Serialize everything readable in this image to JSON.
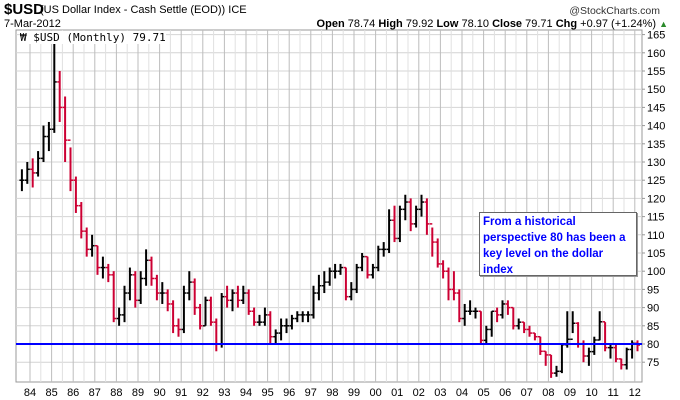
{
  "header": {
    "symbol": "$USD",
    "description": "(US Dollar Index - Cash Settle (EOD)) ICE",
    "copyright": "@StockCharts.com",
    "date": "7-Mar-2012",
    "open_label": "Open",
    "open": "78.74",
    "high_label": "High",
    "high": "79.92",
    "low_label": "Low",
    "low": "78.10",
    "close_label": "Close",
    "close": "79.71",
    "chg_label": "Chg",
    "chg": "+0.97 (+1.24%)",
    "chg_direction": "up"
  },
  "legend": {
    "text": "$USD (Monthly) 79.71",
    "icon": "ohlc-bar-icon"
  },
  "annotation": {
    "text": "From a historical perspective 80 has been a key level on the dollar index"
  },
  "colors": {
    "up": "#000000",
    "down": "#cc0033",
    "reference_line": "#0000ff",
    "grid": "#cccccc"
  },
  "chart_data": {
    "type": "ohlc-bar",
    "title": "$USD (US Dollar Index - Cash Settle (EOD)) ICE",
    "period": "Monthly",
    "ylim": [
      70,
      167
    ],
    "y_ticks": [
      75,
      80,
      85,
      90,
      95,
      100,
      105,
      110,
      115,
      120,
      125,
      130,
      135,
      140,
      145,
      150,
      155,
      160,
      165
    ],
    "x_ticks": [
      "84",
      "85",
      "86",
      "87",
      "88",
      "89",
      "90",
      "91",
      "92",
      "93",
      "94",
      "95",
      "96",
      "97",
      "98",
      "99",
      "00",
      "01",
      "02",
      "03",
      "04",
      "05",
      "06",
      "07",
      "08",
      "09",
      "10",
      "11",
      "12"
    ],
    "x_tick_years": [
      1984,
      1985,
      1986,
      1987,
      1988,
      1989,
      1990,
      1991,
      1992,
      1993,
      1994,
      1995,
      1996,
      1997,
      1998,
      1999,
      2000,
      2001,
      2002,
      2003,
      2004,
      2005,
      2006,
      2007,
      2008,
      2009,
      2010,
      2011,
      2012
    ],
    "grid": true,
    "reference_line": 80,
    "start": "1983-Q3",
    "bar_interval": "quarter (approximated)",
    "bars_close_high_low": [
      [
        125,
        128,
        122
      ],
      [
        128,
        130,
        124
      ],
      [
        127,
        131,
        123
      ],
      [
        131,
        133,
        126
      ],
      [
        137,
        140,
        130
      ],
      [
        139,
        141,
        133
      ],
      [
        152,
        164,
        138
      ],
      [
        145,
        155,
        141
      ],
      [
        136,
        148,
        130
      ],
      [
        125,
        134,
        122
      ],
      [
        118,
        126,
        116
      ],
      [
        111,
        119,
        109
      ],
      [
        106,
        112,
        104
      ],
      [
        107,
        110,
        104
      ],
      [
        101,
        107,
        99
      ],
      [
        101,
        104,
        98
      ],
      [
        99,
        102,
        97
      ],
      [
        87,
        100,
        86
      ],
      [
        88,
        90,
        85
      ],
      [
        94,
        96,
        86
      ],
      [
        99,
        101,
        92
      ],
      [
        92,
        100,
        90
      ],
      [
        98,
        100,
        91
      ],
      [
        103,
        106,
        96
      ],
      [
        98,
        104,
        96
      ],
      [
        94,
        99,
        92
      ],
      [
        94,
        97,
        91
      ],
      [
        91,
        95,
        89
      ],
      [
        85,
        92,
        83
      ],
      [
        84,
        87,
        82
      ],
      [
        94,
        96,
        83
      ],
      [
        97,
        100,
        92
      ],
      [
        90,
        98,
        88
      ],
      [
        85,
        91,
        84
      ],
      [
        92,
        93,
        85
      ],
      [
        86,
        93,
        85
      ],
      [
        80,
        87,
        78
      ],
      [
        93,
        94,
        79
      ],
      [
        92,
        96,
        90
      ],
      [
        94,
        95,
        89
      ],
      [
        92,
        96,
        90
      ],
      [
        94,
        96,
        91
      ],
      [
        89,
        95,
        88
      ],
      [
        86,
        90,
        85
      ],
      [
        86,
        88,
        85
      ],
      [
        88,
        90,
        85
      ],
      [
        82,
        89,
        80
      ],
      [
        83,
        84,
        80
      ],
      [
        85,
        87,
        81
      ],
      [
        85,
        87,
        83
      ],
      [
        87,
        88,
        84
      ],
      [
        88,
        89,
        86
      ],
      [
        88,
        89,
        86
      ],
      [
        88,
        89,
        86
      ],
      [
        94,
        96,
        87
      ],
      [
        96,
        99,
        92
      ],
      [
        97,
        100,
        94
      ],
      [
        100,
        101,
        96
      ],
      [
        100,
        102,
        98
      ],
      [
        101,
        102,
        99
      ],
      [
        93,
        101,
        92
      ],
      [
        95,
        97,
        92
      ],
      [
        101,
        102,
        94
      ],
      [
        104,
        105,
        100
      ],
      [
        99,
        104,
        98
      ],
      [
        101,
        102,
        98
      ],
      [
        106,
        107,
        100
      ],
      [
        106,
        108,
        104
      ],
      [
        114,
        117,
        105
      ],
      [
        109,
        118,
        108
      ],
      [
        117,
        118,
        108
      ],
      [
        119,
        121,
        114
      ],
      [
        113,
        120,
        111
      ],
      [
        117,
        118,
        112
      ],
      [
        119,
        121,
        115
      ],
      [
        113,
        120,
        110
      ],
      [
        108,
        112,
        104
      ],
      [
        102,
        109,
        101
      ],
      [
        100,
        103,
        98
      ],
      [
        95,
        101,
        92
      ],
      [
        94,
        100,
        92
      ],
      [
        87,
        95,
        86
      ],
      [
        89,
        91,
        85
      ],
      [
        89,
        92,
        88
      ],
      [
        89,
        90,
        87
      ],
      [
        81,
        89,
        80
      ],
      [
        84,
        85,
        80
      ],
      [
        89,
        89,
        82
      ],
      [
        88,
        90,
        86
      ],
      [
        91,
        92,
        87
      ],
      [
        90,
        92,
        88
      ],
      [
        85,
        90,
        84
      ],
      [
        86,
        87,
        84
      ],
      [
        84,
        86,
        83
      ],
      [
        83,
        85,
        82
      ],
      [
        82,
        83,
        81
      ],
      [
        78,
        82,
        77
      ],
      [
        77,
        78,
        74
      ],
      [
        72,
        77,
        70.7
      ],
      [
        72.5,
        74,
        71
      ],
      [
        79.8,
        80,
        72
      ],
      [
        81.3,
        89,
        79
      ],
      [
        85.7,
        89,
        83
      ],
      [
        80.1,
        86,
        79
      ],
      [
        76.7,
        81,
        75
      ],
      [
        77.9,
        79,
        74
      ],
      [
        81.1,
        82,
        77
      ],
      [
        86.1,
        89,
        81
      ],
      [
        79,
        86,
        78
      ],
      [
        79,
        80,
        76
      ],
      [
        75.9,
        80,
        75
      ],
      [
        74.3,
        76,
        73
      ],
      [
        78.5,
        79,
        73
      ],
      [
        80.2,
        81,
        76
      ],
      [
        79.71,
        81,
        78
      ]
    ]
  }
}
